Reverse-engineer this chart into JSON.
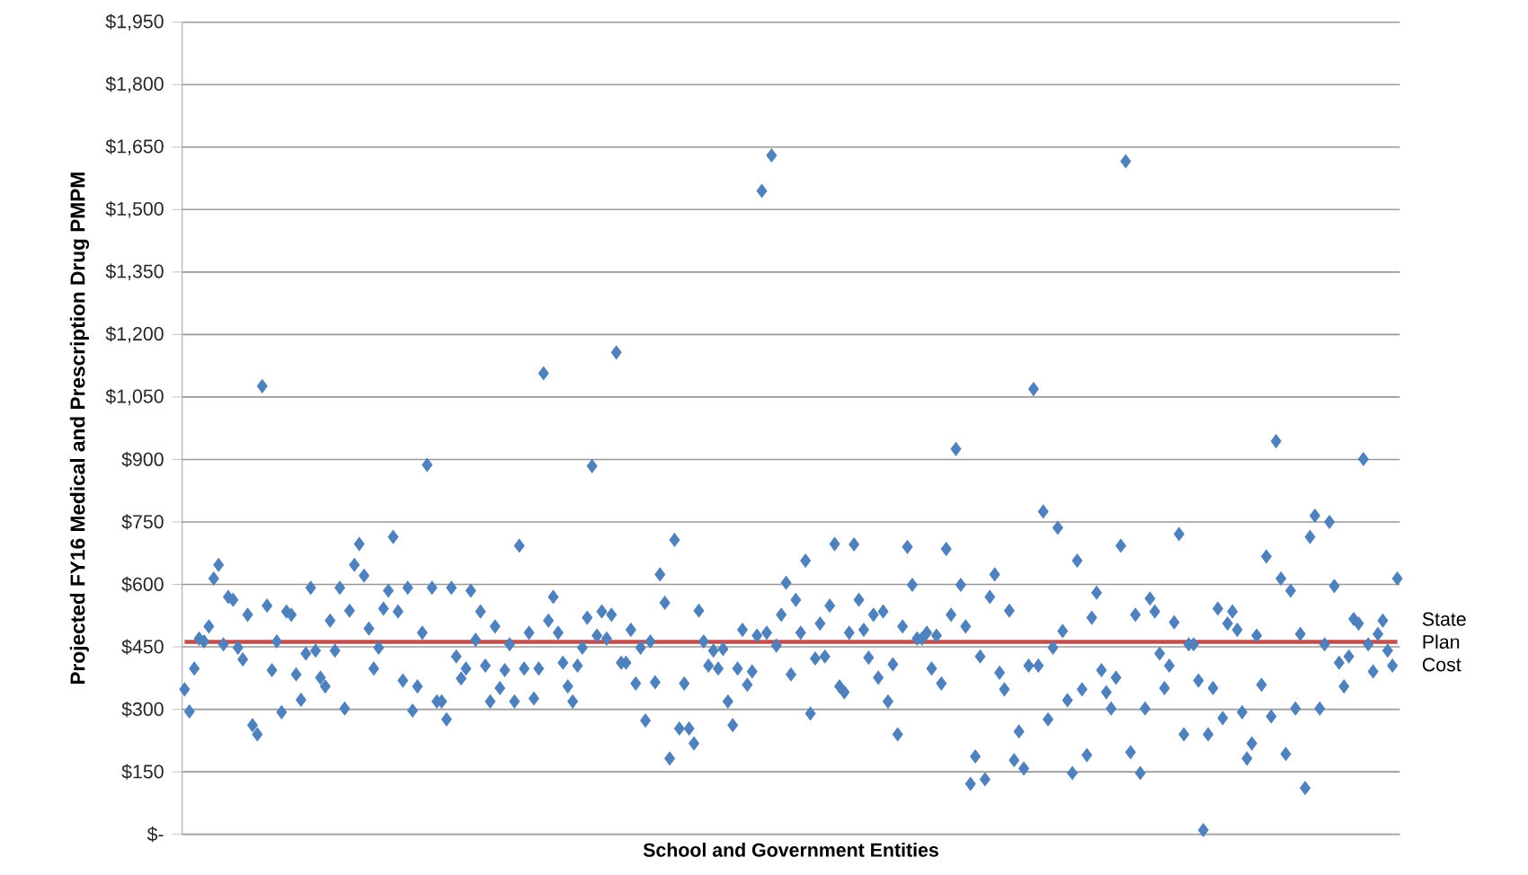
{
  "chart_data": {
    "type": "scatter",
    "xlabel": "School and Government Entities",
    "ylabel": "Projected FY16 Medical and Prescription Drug PMPM",
    "categories": [
      null,
      null,
      null,
      null,
      null,
      null,
      null,
      null,
      null,
      null,
      null,
      null,
      null,
      null,
      null,
      null,
      null,
      null,
      null,
      null,
      null,
      null,
      null,
      null,
      null,
      null,
      null,
      null,
      null,
      null,
      null,
      null,
      null,
      null,
      null,
      null,
      null,
      null,
      null,
      null,
      null,
      null,
      null,
      null,
      null,
      null,
      null,
      null,
      null,
      null,
      null,
      null,
      null,
      null,
      null,
      null,
      null,
      null,
      null,
      null,
      null,
      null,
      null,
      null,
      null,
      null,
      null,
      null,
      null,
      null,
      null,
      null,
      null,
      null,
      null,
      null,
      null,
      null,
      null,
      null,
      null,
      null,
      null,
      null,
      null,
      null,
      null,
      null,
      null,
      null,
      null,
      null,
      null,
      null,
      null,
      null,
      null,
      null,
      null,
      null,
      null,
      null,
      null,
      null,
      null,
      null,
      null,
      null,
      null,
      null,
      null,
      null,
      null,
      null,
      null,
      null,
      null,
      null,
      null,
      null,
      null,
      null,
      null,
      null,
      null,
      null,
      null,
      null,
      null,
      null,
      null,
      null,
      null,
      null,
      null,
      null,
      null,
      null,
      null,
      null,
      null,
      null,
      null,
      null,
      null,
      null,
      null,
      null,
      null,
      null,
      null,
      null,
      null,
      null,
      null,
      null,
      null,
      null,
      null,
      null,
      null,
      null,
      null,
      null,
      null,
      null,
      null,
      null,
      null,
      null,
      null,
      null,
      null,
      null,
      null,
      null,
      null,
      null,
      null,
      null,
      null,
      null,
      null,
      null,
      null,
      null,
      null,
      null,
      null,
      null,
      null,
      null,
      null,
      null,
      null,
      null,
      null,
      null,
      null,
      null,
      null,
      null,
      null,
      null,
      null,
      null,
      null,
      null,
      null,
      null,
      null,
      null,
      null,
      null,
      null,
      null,
      null,
      null,
      null,
      null,
      null,
      null,
      null,
      null,
      null,
      null,
      null,
      null,
      null,
      null,
      null,
      null,
      null,
      null,
      null,
      null,
      null,
      null,
      null,
      null,
      null,
      null,
      null,
      null,
      null,
      null,
      null,
      null,
      null,
      null,
      null
    ],
    "values": [
      348,
      295,
      398,
      470,
      463,
      499,
      614,
      647,
      456,
      570,
      563,
      448,
      420,
      527,
      262,
      240,
      1076,
      549,
      394,
      463,
      293,
      535,
      527,
      384,
      323,
      434,
      592,
      441,
      376,
      355,
      513,
      441,
      592,
      302,
      537,
      647,
      697,
      621,
      494,
      398,
      448,
      542,
      585,
      714,
      535,
      369,
      592,
      297,
      355,
      484,
      887,
      592,
      319,
      319,
      276,
      592,
      427,
      374,
      398,
      585,
      467,
      535,
      405,
      319,
      499,
      351,
      394,
      456,
      319,
      693,
      398,
      484,
      326,
      398,
      1107,
      513,
      570,
      484,
      412,
      355,
      319,
      405,
      448,
      520,
      884,
      477,
      535,
      470,
      527,
      1157,
      412,
      412,
      491,
      362,
      448,
      273,
      463,
      365,
      624,
      556,
      182,
      707,
      254,
      362,
      254,
      218,
      537,
      463,
      405,
      441,
      398,
      445,
      319,
      262,
      398,
      491,
      359,
      391,
      477,
      1545,
      484,
      1630,
      453,
      527,
      604,
      384,
      563,
      484,
      657,
      290,
      422,
      506,
      427,
      549,
      697,
      355,
      341,
      484,
      696,
      563,
      491,
      424,
      527,
      376,
      535,
      319,
      408,
      240,
      499,
      690,
      599,
      470,
      470,
      484,
      398,
      477,
      362,
      685,
      527,
      925,
      599,
      499,
      121,
      187,
      427,
      132,
      570,
      624,
      388,
      348,
      537,
      178,
      247,
      158,
      405,
      1069,
      405,
      775,
      276,
      448,
      736,
      488,
      322,
      147,
      657,
      348,
      190,
      520,
      580,
      394,
      341,
      302,
      376,
      693,
      1616,
      197,
      527,
      147,
      302,
      566,
      535,
      434,
      351,
      405,
      509,
      721,
      240,
      456,
      456,
      369,
      10,
      240,
      351,
      542,
      279,
      506,
      535,
      491,
      293,
      182,
      218,
      477,
      359,
      667,
      283,
      944,
      614,
      193,
      585,
      302,
      481,
      111,
      714,
      765,
      302,
      456,
      750,
      596,
      412,
      355,
      427,
      517,
      506,
      901,
      456,
      391,
      481,
      513,
      441,
      405,
      614
    ],
    "color": "#4f81bd",
    "marker": "diamond",
    "grid": "y",
    "ylim": [
      0,
      1950
    ],
    "yticks": [
      {
        "value": 0,
        "label": "$-"
      },
      {
        "value": 150,
        "label": "$150"
      },
      {
        "value": 300,
        "label": "$300"
      },
      {
        "value": 450,
        "label": "$450"
      },
      {
        "value": 600,
        "label": "$600"
      },
      {
        "value": 750,
        "label": "$750"
      },
      {
        "value": 900,
        "label": "$900"
      },
      {
        "value": 1050,
        "label": "$1,050"
      },
      {
        "value": 1200,
        "label": "$1,200"
      },
      {
        "value": 1350,
        "label": "$1,350"
      },
      {
        "value": 1500,
        "label": "$1,500"
      },
      {
        "value": 1650,
        "label": "$1,650"
      },
      {
        "value": 1800,
        "label": "$1,800"
      },
      {
        "value": 1950,
        "label": "$1,950"
      }
    ],
    "ref_lines": [
      {
        "axis": "y",
        "value": 462,
        "label": "State Plan Cost",
        "color": "#c0504d"
      }
    ]
  }
}
